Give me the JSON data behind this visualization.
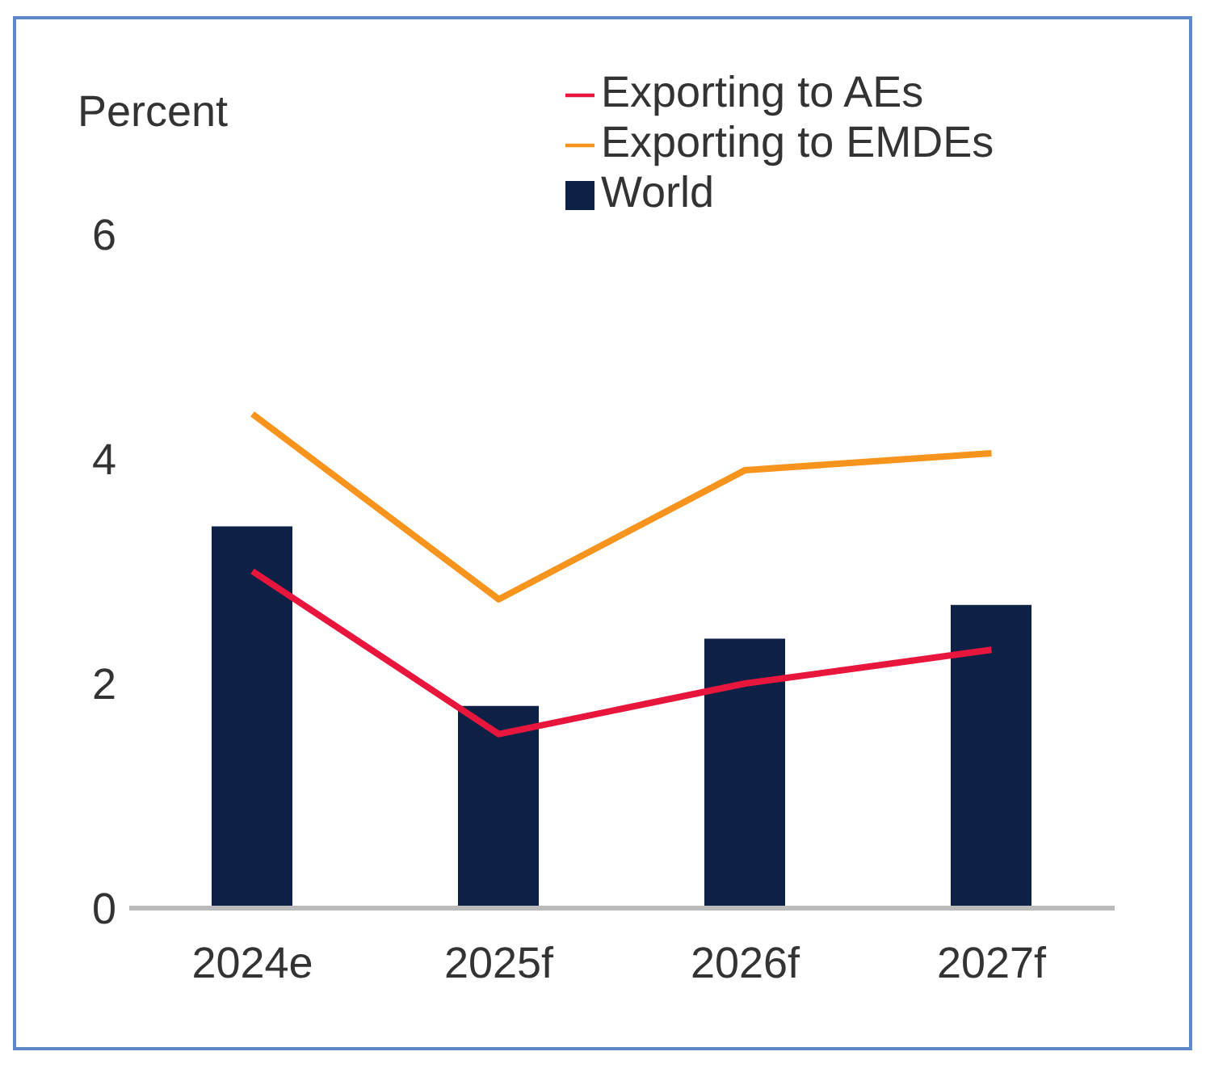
{
  "chart_data": {
    "type": "bar",
    "ylabel": "Percent",
    "categories": [
      "2024e",
      "2025f",
      "2026f",
      "2027f"
    ],
    "series": [
      {
        "name": "World",
        "color": "#0c2145",
        "values": [
          3.4,
          1.8,
          2.4,
          2.7
        ]
      },
      {
        "name": "Exporting to AEs",
        "type": "line",
        "color": "#e8163c",
        "values": [
          3.0,
          1.55,
          2.0,
          2.3
        ]
      },
      {
        "name": "Exporting to EMDEs",
        "type": "line",
        "color": "#f7941d",
        "values": [
          4.4,
          2.75,
          3.9,
          4.05
        ]
      }
    ],
    "ylim": [
      0,
      6
    ],
    "yticks": [
      0,
      2,
      4,
      6
    ],
    "grid": false,
    "legend": "top",
    "marker": "none",
    "line_style": "solid"
  }
}
